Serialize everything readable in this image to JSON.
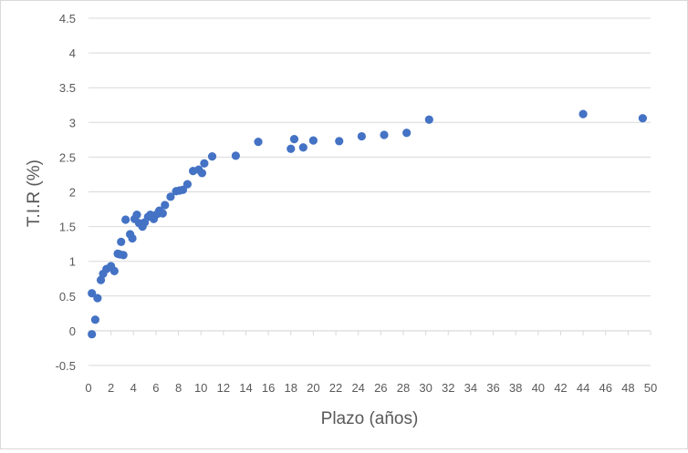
{
  "chart_data": {
    "type": "scatter",
    "title": "",
    "xlabel": "Plazo (años)",
    "ylabel": "T.I.R (%)",
    "xlim": [
      0,
      50
    ],
    "ylim": [
      -0.5,
      4.5
    ],
    "x_ticks": [
      0,
      2,
      4,
      6,
      8,
      10,
      12,
      14,
      16,
      18,
      20,
      22,
      24,
      26,
      28,
      30,
      32,
      34,
      36,
      38,
      40,
      42,
      44,
      46,
      48,
      50
    ],
    "y_ticks": [
      -0.5,
      0,
      0.5,
      1,
      1.5,
      2,
      2.5,
      3,
      3.5,
      4,
      4.5
    ],
    "y_tick_labels": [
      "-0.5",
      "0",
      "0.5",
      "1",
      "1.5",
      "2",
      "2.5",
      "3",
      "3.5",
      "4",
      "4.5"
    ],
    "grid": {
      "horizontal": true,
      "vertical": false
    },
    "legend": "none",
    "marker_color": "#4472C4",
    "series": [
      {
        "name": "T.I.R",
        "x": [
          0.3,
          0.3,
          0.6,
          0.8,
          1.1,
          1.3,
          1.6,
          2.0,
          2.3,
          2.6,
          2.8,
          3.1,
          2.9,
          3.3,
          3.7,
          3.9,
          4.1,
          4.3,
          4.5,
          4.8,
          5.0,
          5.3,
          5.5,
          5.8,
          6.1,
          6.3,
          6.6,
          6.8,
          7.3,
          7.8,
          8.1,
          8.4,
          8.8,
          9.3,
          9.8,
          10.1,
          10.3,
          11.0,
          13.1,
          15.1,
          18.0,
          18.3,
          19.1,
          20.0,
          22.3,
          24.3,
          26.3,
          28.3,
          30.3,
          44.0,
          49.3
        ],
        "y": [
          -0.05,
          0.54,
          0.16,
          0.47,
          0.73,
          0.82,
          0.89,
          0.93,
          0.86,
          1.11,
          1.1,
          1.09,
          1.28,
          1.6,
          1.39,
          1.33,
          1.61,
          1.67,
          1.55,
          1.5,
          1.56,
          1.64,
          1.67,
          1.61,
          1.68,
          1.73,
          1.69,
          1.81,
          1.93,
          2.01,
          2.02,
          2.03,
          2.11,
          2.3,
          2.32,
          2.27,
          2.41,
          2.51,
          2.52,
          2.72,
          2.62,
          2.76,
          2.64,
          2.74,
          2.73,
          2.8,
          2.82,
          2.85,
          3.04,
          3.12,
          3.06
        ]
      }
    ]
  }
}
